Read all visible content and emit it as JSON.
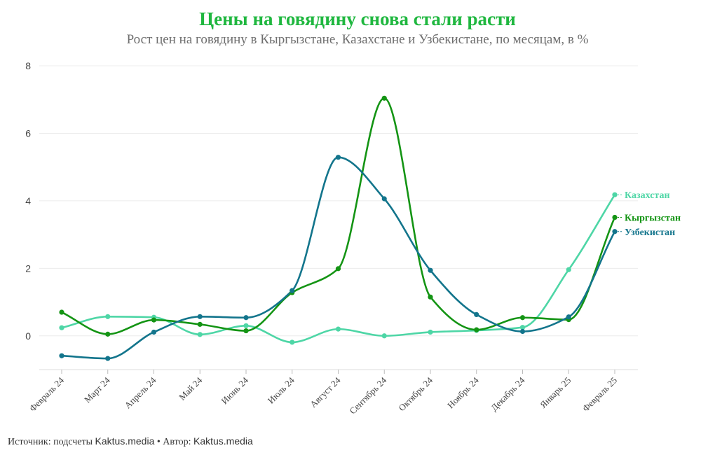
{
  "header": {
    "title": "Цены на говядину снова стали расти",
    "subtitle": "Рост цен на говядину в Кыргызстане, Казахстане и Узбекистане, по месяцам, в %"
  },
  "footer": {
    "source_label": "Источник: подсчеты ",
    "source_value": "Kaktus.media",
    "separator": " • Автор: ",
    "author_value": "Kaktus.media"
  },
  "chart_data": {
    "type": "line",
    "title": "Цены на говядину снова стали расти",
    "subtitle": "Рост цен на говядину в Кыргызстане, Казахстане и Узбекистане, по месяцам, в %",
    "categories": [
      "Февраль 24",
      "Март 24",
      "Апрель 24",
      "Май 24",
      "Июнь 24",
      "Июль 24",
      "Август 24",
      "Сентябрь 24",
      "Октябрь 24",
      "Ноябрь 24",
      "Декабрь 24",
      "Январь 25",
      "Февраль 25"
    ],
    "ylim": [
      -1,
      8
    ],
    "yticks": [
      0,
      2,
      4,
      6,
      8
    ],
    "grid": true,
    "legend": "end-of-line labels (right)",
    "series": [
      {
        "name": "Казахстан",
        "color": "#4ed6a6",
        "values": [
          0.24,
          0.57,
          0.55,
          0.04,
          0.3,
          -0.19,
          0.2,
          0.0,
          0.11,
          0.16,
          0.25,
          1.96,
          4.18
        ]
      },
      {
        "name": "Кыргызстан",
        "color": "#149414",
        "values": [
          0.7,
          0.05,
          0.47,
          0.34,
          0.15,
          1.28,
          1.99,
          7.04,
          1.15,
          0.18,
          0.54,
          0.48,
          3.51
        ]
      },
      {
        "name": "Узбекистан",
        "color": "#13758c",
        "values": [
          -0.59,
          -0.67,
          0.11,
          0.57,
          0.54,
          1.34,
          5.29,
          4.06,
          1.94,
          0.63,
          0.13,
          0.56,
          3.09
        ]
      }
    ]
  }
}
